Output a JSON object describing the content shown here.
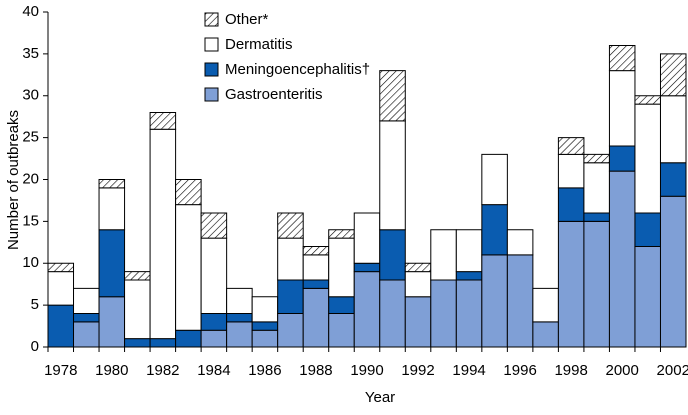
{
  "chart_data": {
    "type": "stacked_bar",
    "x_label": "Year",
    "y_label": "Number of outbreaks",
    "categories": [
      "1978",
      null,
      "1980",
      null,
      "1982",
      null,
      "1984",
      null,
      "1986",
      null,
      "1988",
      null,
      "1990",
      null,
      "1992",
      null,
      "1994",
      null,
      "1996",
      null,
      "1998",
      null,
      "2000",
      null,
      "2002"
    ],
    "series": [
      {
        "name": "Gastroenteritis",
        "color": "#7f9fd6",
        "values": [
          0,
          3,
          6,
          0,
          0,
          0,
          2,
          3,
          2,
          4,
          7,
          4,
          9,
          8,
          6,
          8,
          8,
          11,
          11,
          3,
          15,
          15,
          21,
          12,
          18
        ]
      },
      {
        "name": "Meningoencephalitis†",
        "color": "#0a5cb0",
        "values": [
          5,
          1,
          8,
          1,
          1,
          2,
          2,
          1,
          1,
          4,
          1,
          2,
          1,
          6,
          0,
          0,
          1,
          6,
          0,
          0,
          4,
          1,
          3,
          4,
          4
        ]
      },
      {
        "name": "Dermatitis",
        "color": "#ffffff",
        "values": [
          4,
          3,
          5,
          7,
          25,
          15,
          9,
          3,
          3,
          5,
          3,
          7,
          6,
          13,
          3,
          6,
          5,
          6,
          3,
          4,
          4,
          6,
          9,
          13,
          8
        ]
      },
      {
        "name": "Other*",
        "color": "#000000",
        "hatch": true,
        "values": [
          1,
          0,
          1,
          1,
          2,
          3,
          3,
          0,
          0,
          3,
          1,
          1,
          0,
          6,
          1,
          0,
          0,
          0,
          0,
          0,
          2,
          1,
          3,
          1,
          5
        ]
      }
    ],
    "ylim": [
      0,
      40
    ],
    "yticks": [
      0,
      5,
      10,
      15,
      20,
      25,
      30,
      35,
      40
    ]
  }
}
